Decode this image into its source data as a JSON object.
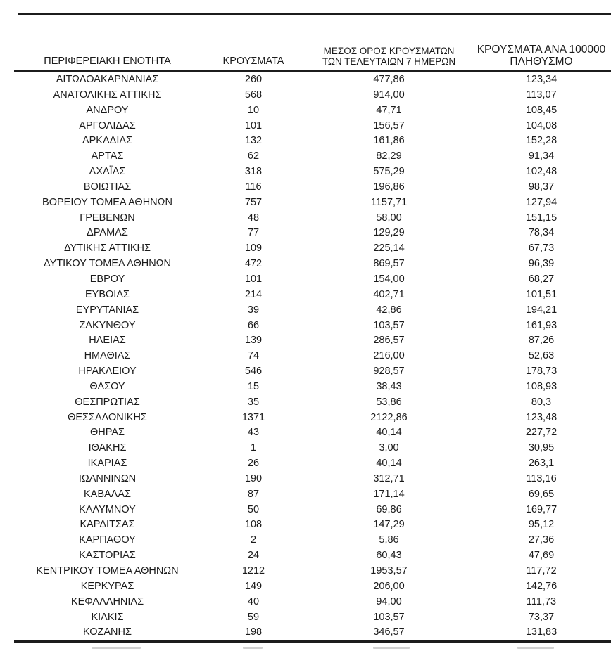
{
  "page": {
    "background_color": "#ffffff",
    "text_color": "#1b1b1b",
    "rule_color": "#1c1c1c"
  },
  "table": {
    "headers": [
      {
        "id": "region",
        "lines": [
          "ΠΕΡΙΦΕΡΕΙΑΚΗ ΕΝΟΤΗΤΑ"
        ]
      },
      {
        "id": "cases",
        "lines": [
          "ΚΡΟΥΣΜΑΤΑ"
        ]
      },
      {
        "id": "avg7days",
        "lines": [
          "ΜΕΣΟΣ ΟΡΟΣ ΚΡΟΥΣΜΑΤΩΝ",
          "ΤΩΝ ΤΕΛΕΥΤΑΙΩΝ 7 ΗΜΕΡΩΝ"
        ]
      },
      {
        "id": "per100k",
        "lines": [
          "ΚΡΟΥΣΜΑΤΑ ΑΝΑ 100000",
          "ΠΛΗΘΥΣΜΟ"
        ]
      }
    ],
    "rows": [
      [
        "ΑΙΤΩΛΟΑΚΑΡΝΑΝΙΑΣ",
        "260",
        "477,86",
        "123,34"
      ],
      [
        "ΑΝΑΤΟΛΙΚΗΣ ΑΤΤΙΚΗΣ",
        "568",
        "914,00",
        "113,07"
      ],
      [
        "ΑΝΔΡΟΥ",
        "10",
        "47,71",
        "108,45"
      ],
      [
        "ΑΡΓΟΛΙΔΑΣ",
        "101",
        "156,57",
        "104,08"
      ],
      [
        "ΑΡΚΑΔΙΑΣ",
        "132",
        "161,86",
        "152,28"
      ],
      [
        "ΑΡΤΑΣ",
        "62",
        "82,29",
        "91,34"
      ],
      [
        "ΑΧΑΪΑΣ",
        "318",
        "575,29",
        "102,48"
      ],
      [
        "ΒΟΙΩΤΙΑΣ",
        "116",
        "196,86",
        "98,37"
      ],
      [
        "ΒΟΡΕΙΟΥ ΤΟΜΕΑ ΑΘΗΝΩΝ",
        "757",
        "1157,71",
        "127,94"
      ],
      [
        "ΓΡΕΒΕΝΩΝ",
        "48",
        "58,00",
        "151,15"
      ],
      [
        "ΔΡΑΜΑΣ",
        "77",
        "129,29",
        "78,34"
      ],
      [
        "ΔΥΤΙΚΗΣ ΑΤΤΙΚΗΣ",
        "109",
        "225,14",
        "67,73"
      ],
      [
        "ΔΥΤΙΚΟΥ ΤΟΜΕΑ ΑΘΗΝΩΝ",
        "472",
        "869,57",
        "96,39"
      ],
      [
        "ΕΒΡΟΥ",
        "101",
        "154,00",
        "68,27"
      ],
      [
        "ΕΥΒΟΙΑΣ",
        "214",
        "402,71",
        "101,51"
      ],
      [
        "ΕΥΡΥΤΑΝΙΑΣ",
        "39",
        "42,86",
        "194,21"
      ],
      [
        "ΖΑΚΥΝΘΟΥ",
        "66",
        "103,57",
        "161,93"
      ],
      [
        "ΗΛΕΙΑΣ",
        "139",
        "286,57",
        "87,26"
      ],
      [
        "ΗΜΑΘΙΑΣ",
        "74",
        "216,00",
        "52,63"
      ],
      [
        "ΗΡΑΚΛΕΙΟΥ",
        "546",
        "928,57",
        "178,73"
      ],
      [
        "ΘΑΣΟΥ",
        "15",
        "38,43",
        "108,93"
      ],
      [
        "ΘΕΣΠΡΩΤΙΑΣ",
        "35",
        "53,86",
        "80,3"
      ],
      [
        "ΘΕΣΣΑΛΟΝΙΚΗΣ",
        "1371",
        "2122,86",
        "123,48"
      ],
      [
        "ΘΗΡΑΣ",
        "43",
        "40,14",
        "227,72"
      ],
      [
        "ΙΘΑΚΗΣ",
        "1",
        "3,00",
        "30,95"
      ],
      [
        "ΙΚΑΡΙΑΣ",
        "26",
        "40,14",
        "263,1"
      ],
      [
        "ΙΩΑΝΝΙΝΩΝ",
        "190",
        "312,71",
        "113,16"
      ],
      [
        "ΚΑΒΑΛΑΣ",
        "87",
        "171,14",
        "69,65"
      ],
      [
        "ΚΑΛΥΜΝΟΥ",
        "50",
        "69,86",
        "169,77"
      ],
      [
        "ΚΑΡΔΙΤΣΑΣ",
        "108",
        "147,29",
        "95,12"
      ],
      [
        "ΚΑΡΠΑΘΟΥ",
        "2",
        "5,86",
        "27,36"
      ],
      [
        "ΚΑΣΤΟΡΙΑΣ",
        "24",
        "60,43",
        "47,69"
      ],
      [
        "ΚΕΝΤΡΙΚΟΥ ΤΟΜΕΑ ΑΘΗΝΩΝ",
        "1212",
        "1953,57",
        "117,72"
      ],
      [
        "ΚΕΡΚΥΡΑΣ",
        "149",
        "206,00",
        "142,76"
      ],
      [
        "ΚΕΦΑΛΛΗΝΙΑΣ",
        "40",
        "94,00",
        "111,73"
      ],
      [
        "ΚΙΛΚΙΣ",
        "59",
        "103,57",
        "73,37"
      ],
      [
        "ΚΟΖΑΝΗΣ",
        "198",
        "346,57",
        "131,83"
      ]
    ],
    "cell_names": [
      "region-cell",
      "cases-cell",
      "avg7days-cell",
      "per100k-cell"
    ]
  }
}
